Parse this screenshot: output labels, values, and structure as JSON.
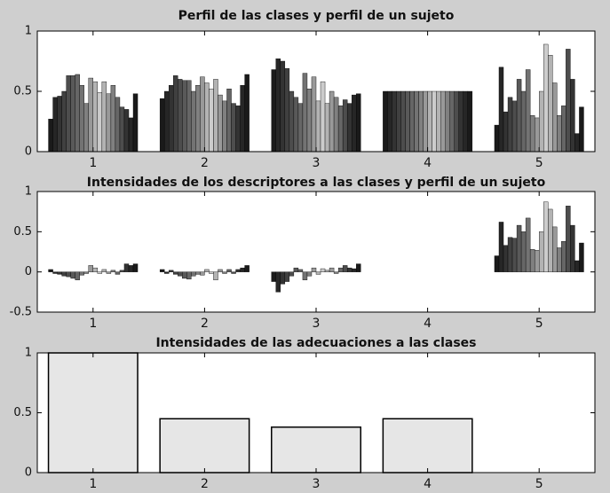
{
  "chart_data": [
    {
      "type": "bar",
      "title": "Perfil de las clases y perfil de un sujeto",
      "categories": [
        "1",
        "2",
        "3",
        "4",
        "5"
      ],
      "ylim": [
        0,
        1
      ],
      "yticks": [
        0,
        0.5,
        1
      ],
      "series": [
        {
          "color": "#1a1a1a",
          "values": [
            0.27,
            0.44,
            0.68,
            0.5,
            0.22
          ]
        },
        {
          "color": "#262626",
          "values": [
            0.45,
            0.5,
            0.77,
            0.5,
            0.7
          ]
        },
        {
          "color": "#333333",
          "values": [
            0.46,
            0.55,
            0.75,
            0.5,
            0.33
          ]
        },
        {
          "color": "#404040",
          "values": [
            0.5,
            0.63,
            0.69,
            0.5,
            0.45
          ]
        },
        {
          "color": "#4d4d4d",
          "values": [
            0.63,
            0.6,
            0.5,
            0.5,
            0.42
          ]
        },
        {
          "color": "#595959",
          "values": [
            0.63,
            0.59,
            0.45,
            0.5,
            0.6
          ]
        },
        {
          "color": "#666666",
          "values": [
            0.64,
            0.59,
            0.4,
            0.5,
            0.5
          ]
        },
        {
          "color": "#737373",
          "values": [
            0.55,
            0.5,
            0.65,
            0.5,
            0.68
          ]
        },
        {
          "color": "#808080",
          "values": [
            0.4,
            0.55,
            0.52,
            0.5,
            0.3
          ]
        },
        {
          "color": "#999999",
          "values": [
            0.61,
            0.62,
            0.62,
            0.5,
            0.28
          ]
        },
        {
          "color": "#b3b3b3",
          "values": [
            0.58,
            0.57,
            0.42,
            0.5,
            0.5
          ]
        },
        {
          "color": "#cccccc",
          "values": [
            0.49,
            0.52,
            0.58,
            0.5,
            0.89
          ]
        },
        {
          "color": "#b3b3b3",
          "values": [
            0.58,
            0.6,
            0.4,
            0.5,
            0.8
          ]
        },
        {
          "color": "#999999",
          "values": [
            0.48,
            0.47,
            0.5,
            0.5,
            0.57
          ]
        },
        {
          "color": "#808080",
          "values": [
            0.55,
            0.42,
            0.45,
            0.5,
            0.3
          ]
        },
        {
          "color": "#666666",
          "values": [
            0.45,
            0.52,
            0.38,
            0.5,
            0.38
          ]
        },
        {
          "color": "#4d4d4d",
          "values": [
            0.37,
            0.4,
            0.43,
            0.5,
            0.85
          ]
        },
        {
          "color": "#333333",
          "values": [
            0.35,
            0.38,
            0.4,
            0.5,
            0.6
          ]
        },
        {
          "color": "#262626",
          "values": [
            0.28,
            0.55,
            0.47,
            0.5,
            0.15
          ]
        },
        {
          "color": "#1a1a1a",
          "values": [
            0.48,
            0.64,
            0.48,
            0.5,
            0.37
          ]
        }
      ]
    },
    {
      "type": "bar",
      "title": "Intensidades de los descriptores a las clases y perfil de un sujeto",
      "categories": [
        "1",
        "2",
        "3",
        "4",
        "5"
      ],
      "ylim": [
        -0.5,
        1
      ],
      "yticks": [
        -0.5,
        0,
        0.5,
        1
      ],
      "series": [
        {
          "color": "#1a1a1a",
          "values": [
            0.03,
            0.03,
            -0.12,
            0,
            0.2
          ]
        },
        {
          "color": "#262626",
          "values": [
            -0.02,
            -0.02,
            -0.25,
            0,
            0.62
          ]
        },
        {
          "color": "#333333",
          "values": [
            -0.03,
            0.02,
            -0.15,
            0,
            0.33
          ]
        },
        {
          "color": "#404040",
          "values": [
            -0.05,
            -0.03,
            -0.12,
            0,
            0.43
          ]
        },
        {
          "color": "#4d4d4d",
          "values": [
            -0.06,
            -0.05,
            -0.05,
            0,
            0.42
          ]
        },
        {
          "color": "#595959",
          "values": [
            -0.08,
            -0.08,
            0.05,
            0,
            0.58
          ]
        },
        {
          "color": "#666666",
          "values": [
            -0.1,
            -0.09,
            0.03,
            0,
            0.5
          ]
        },
        {
          "color": "#737373",
          "values": [
            -0.04,
            -0.05,
            -0.1,
            0,
            0.67
          ]
        },
        {
          "color": "#808080",
          "values": [
            -0.02,
            -0.03,
            -0.05,
            0,
            0.28
          ]
        },
        {
          "color": "#999999",
          "values": [
            0.08,
            -0.04,
            0.05,
            0,
            0.27
          ]
        },
        {
          "color": "#b3b3b3",
          "values": [
            0.05,
            0.03,
            -0.03,
            0,
            0.5
          ]
        },
        {
          "color": "#cccccc",
          "values": [
            -0.02,
            -0.02,
            0.04,
            0,
            0.87
          ]
        },
        {
          "color": "#b3b3b3",
          "values": [
            0.03,
            -0.1,
            0.02,
            0,
            0.78
          ]
        },
        {
          "color": "#999999",
          "values": [
            -0.02,
            0.03,
            0.05,
            0,
            0.56
          ]
        },
        {
          "color": "#808080",
          "values": [
            0.02,
            -0.02,
            -0.02,
            0,
            0.3
          ]
        },
        {
          "color": "#666666",
          "values": [
            -0.03,
            0.03,
            0.05,
            0,
            0.38
          ]
        },
        {
          "color": "#4d4d4d",
          "values": [
            0.02,
            -0.02,
            0.08,
            0,
            0.82
          ]
        },
        {
          "color": "#333333",
          "values": [
            0.1,
            0.03,
            0.05,
            0,
            0.58
          ]
        },
        {
          "color": "#262626",
          "values": [
            0.08,
            0.05,
            0.04,
            0,
            0.14
          ]
        },
        {
          "color": "#1a1a1a",
          "values": [
            0.1,
            0.08,
            0.1,
            0,
            0.36
          ]
        }
      ]
    },
    {
      "type": "bar",
      "title": "Intensidades de las adecuaciones a las clases",
      "categories": [
        "1",
        "2",
        "3",
        "4",
        "5"
      ],
      "ylim": [
        0,
        1
      ],
      "yticks": [
        0,
        0.5,
        1
      ],
      "series": [
        {
          "color": "#e6e6e6",
          "values": [
            1,
            0.45,
            0.38,
            0.45,
            0
          ]
        }
      ]
    }
  ]
}
